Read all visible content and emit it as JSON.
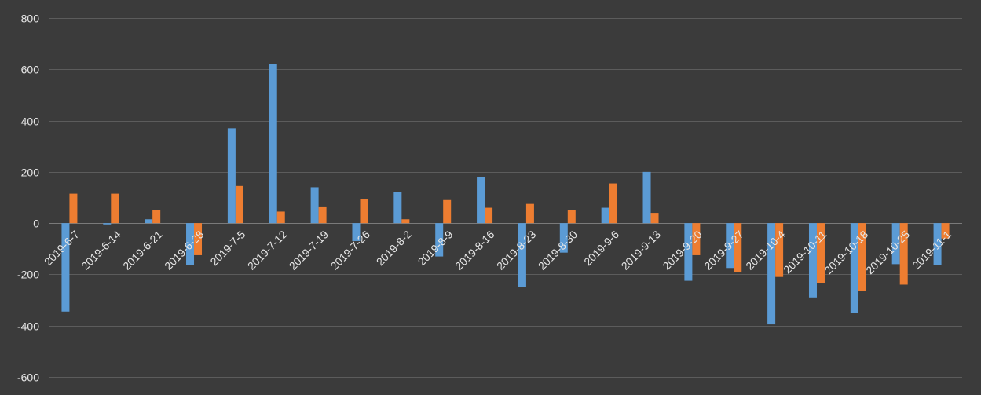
{
  "chart_data": {
    "type": "bar",
    "title": "",
    "xlabel": "",
    "ylabel": "",
    "ylim": [
      -600,
      800
    ],
    "yticks": [
      -600,
      -400,
      -200,
      0,
      200,
      400,
      600,
      800
    ],
    "ytick_labels": [
      "-600",
      "-400",
      "-200",
      "0",
      "200",
      "400",
      "600",
      "800"
    ],
    "grid": true,
    "legend": "none",
    "categories": [
      "2019-6-7",
      "2019-6-14",
      "2019-6-21",
      "2019-6-28",
      "2019-7-5",
      "2019-7-12",
      "2019-7-19",
      "2019-7-26",
      "2019-8-2",
      "2019-8-9",
      "2019-8-16",
      "2019-8-23",
      "2019-8-30",
      "2019-9-6",
      "2019-9-13",
      "2019-9-20",
      "2019-9-27",
      "2019-10-4",
      "2019-10-11",
      "2019-10-18",
      "2019-10-25",
      "2019-11-1"
    ],
    "series": [
      {
        "color": "#5b9bd5",
        "values": [
          -345,
          -5,
          15,
          -165,
          370,
          620,
          140,
          -70,
          120,
          -130,
          180,
          -250,
          -115,
          60,
          200,
          -225,
          -175,
          -395,
          -290,
          -350,
          -160,
          -165
        ]
      },
      {
        "color": "#ed7d31",
        "values": [
          115,
          115,
          50,
          -125,
          145,
          45,
          65,
          95,
          15,
          90,
          60,
          75,
          50,
          155,
          40,
          -125,
          -190,
          -210,
          -235,
          -265,
          -240,
          -60
        ]
      }
    ]
  }
}
